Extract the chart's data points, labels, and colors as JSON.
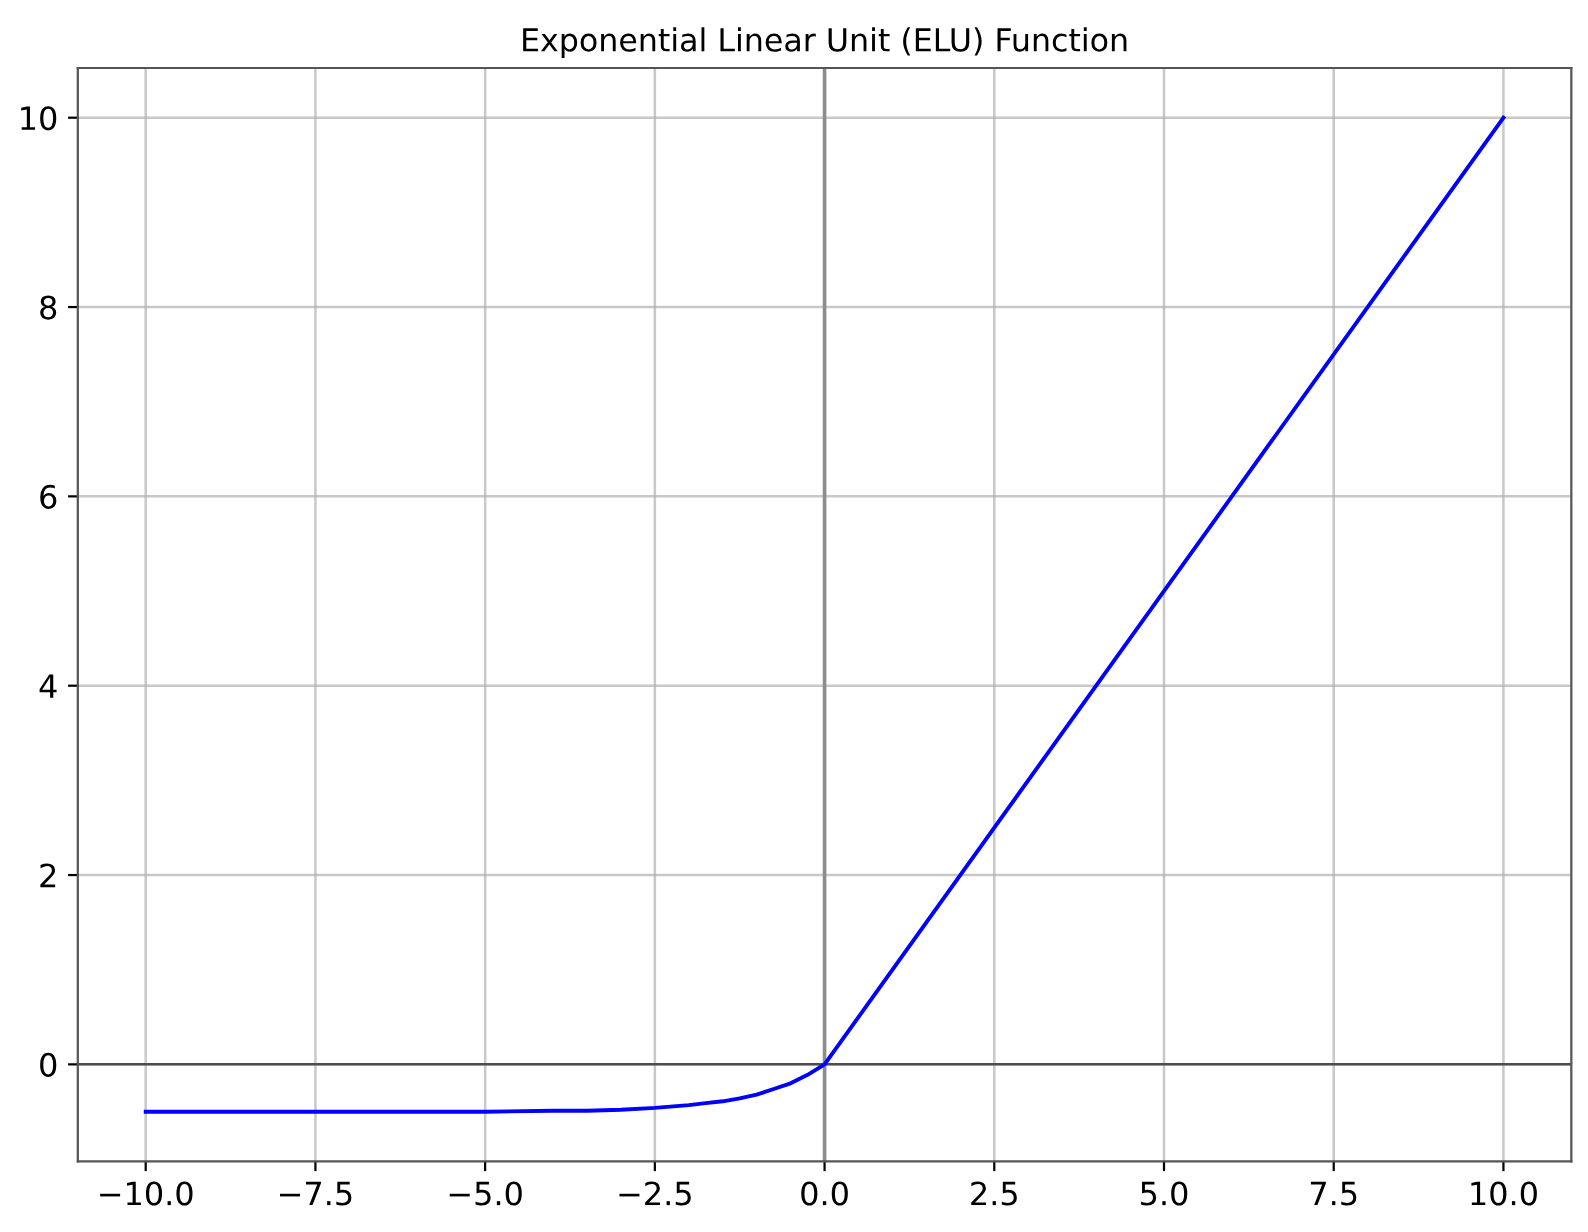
{
  "chart_data": {
    "type": "line",
    "title": "Exponential Linear Unit (ELU) Function",
    "x": [
      -10,
      -8,
      -6,
      -5,
      -4,
      -3.5,
      -3,
      -2.5,
      -2,
      -1.75,
      -1.5,
      -1.25,
      -1,
      -0.75,
      -0.5,
      -0.25,
      0,
      10
    ],
    "series": [
      {
        "color": "#0000ff",
        "values": [
          -0.5,
          -0.5,
          -0.5,
          -0.5,
          -0.49,
          -0.49,
          -0.48,
          -0.46,
          -0.43,
          -0.41,
          -0.39,
          -0.36,
          -0.32,
          -0.26,
          -0.2,
          -0.11,
          0,
          10
        ]
      }
    ],
    "xlim": [
      -11,
      11
    ],
    "ylim": [
      -1.025,
      10.525
    ],
    "xticks": [
      {
        "value": -10,
        "label": "−10.0"
      },
      {
        "value": -7.5,
        "label": "−7.5"
      },
      {
        "value": -5,
        "label": "−5.0"
      },
      {
        "value": -2.5,
        "label": "−2.5"
      },
      {
        "value": 0,
        "label": "0.0"
      },
      {
        "value": 2.5,
        "label": "2.5"
      },
      {
        "value": 5,
        "label": "5.0"
      },
      {
        "value": 7.5,
        "label": "7.5"
      },
      {
        "value": 10,
        "label": "10.0"
      }
    ],
    "yticks": [
      0,
      2,
      4,
      6,
      8,
      10
    ],
    "ref_lines": [
      {
        "axis": "x",
        "value": 0,
        "color": "#8c8c8c"
      },
      {
        "axis": "y",
        "value": 0,
        "color": "#4d4d4d"
      }
    ],
    "grid": true,
    "marker": "none",
    "line_style": "solid"
  }
}
